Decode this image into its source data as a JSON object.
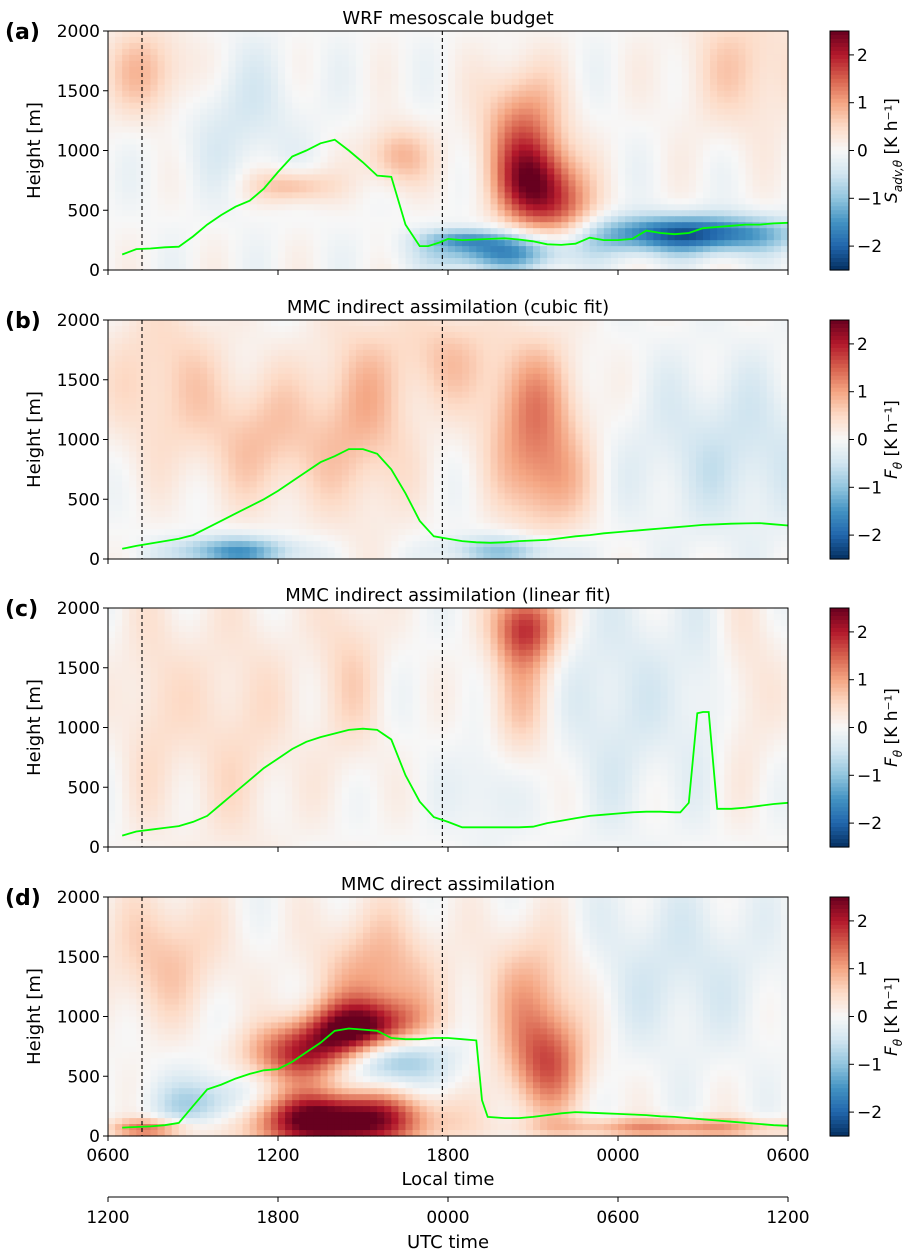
{
  "chart_data": [
    {
      "type": "heatmap",
      "panel_label": "(a)",
      "title": "WRF mesoscale budget",
      "ylabel": "Height [m]",
      "ylim": [
        0,
        2000
      ],
      "yticks": [
        "0",
        "500",
        "1000",
        "1500",
        "2000"
      ],
      "colorbar_label": "S_adv,θ [K h⁻¹]",
      "colorbar_main": "S",
      "colorbar_sub": "adv,θ",
      "colorbar_rest": " [K h⁻¹]",
      "colorbar_range": [
        -2.5,
        2.5
      ],
      "colorbar_ticks": [
        "−2",
        "−1",
        "0",
        "1",
        "2"
      ],
      "colormap": "RdBu_r",
      "line_color": "#00ff00",
      "series": [
        {
          "x": [
            0.5,
            1,
            1.5,
            2,
            2.5,
            3,
            3.5,
            4,
            4.5,
            5,
            5.5,
            6,
            6.5,
            7,
            7.5,
            8,
            8.5,
            9,
            9.5,
            10,
            10.5,
            11,
            11.3,
            11.7,
            12,
            12.5,
            13,
            13.5,
            14,
            14.5,
            15,
            15.5,
            16,
            16.5,
            17,
            17.5,
            18,
            18.5,
            19,
            19.5,
            20,
            20.5,
            21,
            21.5,
            22,
            22.5,
            23,
            23.5,
            24
          ],
          "y": [
            130,
            175,
            180,
            190,
            195,
            280,
            380,
            460,
            530,
            580,
            680,
            820,
            950,
            1000,
            1060,
            1090,
            1000,
            900,
            790,
            780,
            380,
            200,
            200,
            230,
            260,
            250,
            255,
            260,
            265,
            255,
            240,
            215,
            210,
            220,
            270,
            250,
            250,
            260,
            330,
            310,
            300,
            310,
            350,
            360,
            370,
            380,
            380,
            390,
            395
          ]
        }
      ],
      "dashed_lines_x": [
        1.2,
        11.8
      ],
      "blobs": [
        {
          "x": 15,
          "y": 700,
          "sx": 0.9,
          "sy": 260,
          "a": 2.0
        },
        {
          "x": 14.6,
          "y": 1200,
          "sx": 1.0,
          "sy": 350,
          "a": 1.2
        },
        {
          "x": 16.2,
          "y": 500,
          "sx": 0.8,
          "sy": 250,
          "a": 0.9
        },
        {
          "x": 20.5,
          "y": 300,
          "sx": 2.5,
          "sy": 110,
          "a": -2.2
        },
        {
          "x": 14.0,
          "y": 150,
          "sx": 1.8,
          "sy": 110,
          "a": -1.6
        },
        {
          "x": 12.5,
          "y": 260,
          "sx": 1.0,
          "sy": 60,
          "a": -0.9
        },
        {
          "x": 6.5,
          "y": 700,
          "sx": 1.0,
          "sy": 100,
          "a": 0.9
        },
        {
          "x": 10.2,
          "y": 950,
          "sx": 0.8,
          "sy": 180,
          "a": 0.9
        },
        {
          "x": 1.5,
          "y": 1650,
          "sx": 1.2,
          "sy": 280,
          "a": 0.8
        },
        {
          "x": 22.5,
          "y": 1700,
          "sx": 1.6,
          "sy": 400,
          "a": 0.6
        },
        {
          "x": 4.5,
          "y": 1300,
          "sx": 1.6,
          "sy": 400,
          "a": -0.4
        }
      ]
    },
    {
      "type": "heatmap",
      "panel_label": "(b)",
      "title": "MMC indirect assimilation (cubic fit)",
      "ylabel": "Height [m]",
      "ylim": [
        0,
        2000
      ],
      "yticks": [
        "0",
        "500",
        "1000",
        "1500",
        "2000"
      ],
      "colorbar_label": "F_θ [K h⁻¹]",
      "colorbar_main": "F",
      "colorbar_sub": "θ",
      "colorbar_rest": " [K h⁻¹]",
      "colorbar_range": [
        -2.5,
        2.5
      ],
      "colorbar_ticks": [
        "−2",
        "−1",
        "0",
        "1",
        "2"
      ],
      "colormap": "RdBu_r",
      "line_color": "#00ff00",
      "series": [
        {
          "x": [
            0.5,
            1,
            1.5,
            2,
            2.5,
            3,
            3.5,
            4,
            4.5,
            5,
            5.5,
            6,
            6.5,
            7,
            7.5,
            8,
            8.5,
            9,
            9.5,
            10,
            10.5,
            11,
            11.5,
            12,
            12.5,
            13,
            13.5,
            14,
            14.5,
            15,
            15.5,
            16,
            16.5,
            17,
            17.5,
            18,
            18.5,
            19,
            19.5,
            20,
            20.5,
            21,
            21.5,
            22,
            22.5,
            23,
            23.5,
            24
          ],
          "y": [
            85,
            110,
            130,
            150,
            170,
            200,
            260,
            320,
            380,
            440,
            500,
            570,
            650,
            730,
            810,
            860,
            920,
            920,
            880,
            750,
            550,
            320,
            190,
            170,
            150,
            140,
            135,
            140,
            150,
            155,
            160,
            175,
            190,
            200,
            215,
            225,
            235,
            245,
            255,
            265,
            275,
            285,
            290,
            295,
            298,
            300,
            290,
            280
          ]
        }
      ],
      "dashed_lines_x": [
        1.2,
        11.8
      ],
      "blobs": [
        {
          "x": 15,
          "y": 1200,
          "sx": 1.2,
          "sy": 450,
          "a": 1.2
        },
        {
          "x": 15.6,
          "y": 600,
          "sx": 1.0,
          "sy": 300,
          "a": 0.7
        },
        {
          "x": 4.5,
          "y": 60,
          "sx": 1.5,
          "sy": 90,
          "a": -1.5
        },
        {
          "x": 14.0,
          "y": 70,
          "sx": 1.5,
          "sy": 90,
          "a": -1.0
        },
        {
          "x": 9,
          "y": 1200,
          "sx": 1.3,
          "sy": 600,
          "a": 0.8
        },
        {
          "x": 5.5,
          "y": 1000,
          "sx": 1.5,
          "sy": 400,
          "a": 0.7
        },
        {
          "x": 2,
          "y": 1500,
          "sx": 1.5,
          "sy": 500,
          "a": 0.6
        },
        {
          "x": 22,
          "y": 900,
          "sx": 2.5,
          "sy": 500,
          "a": -0.5
        },
        {
          "x": 12,
          "y": 1700,
          "sx": 1.2,
          "sy": 300,
          "a": 0.6
        }
      ]
    },
    {
      "type": "heatmap",
      "panel_label": "(c)",
      "title": "MMC indirect assimilation (linear fit)",
      "ylabel": "Height [m]",
      "ylim": [
        0,
        2000
      ],
      "yticks": [
        "0",
        "500",
        "1000",
        "1500",
        "2000"
      ],
      "colorbar_label": "F_θ [K h⁻¹]",
      "colorbar_main": "F",
      "colorbar_sub": "θ",
      "colorbar_rest": " [K h⁻¹]",
      "colorbar_range": [
        -2.5,
        2.5
      ],
      "colorbar_ticks": [
        "−2",
        "−1",
        "0",
        "1",
        "2"
      ],
      "colormap": "RdBu_r",
      "line_color": "#00ff00",
      "series": [
        {
          "x": [
            0.5,
            1,
            1.5,
            2,
            2.5,
            3,
            3.5,
            4,
            4.5,
            5,
            5.5,
            6,
            6.5,
            7,
            7.5,
            8,
            8.5,
            9,
            9.5,
            10,
            10.5,
            11,
            11.5,
            12,
            12.5,
            13,
            13.5,
            14,
            14.5,
            15,
            15.5,
            16,
            16.5,
            17,
            17.5,
            18,
            18.5,
            19,
            19.5,
            20,
            20.2,
            20.5,
            20.8,
            21,
            21.2,
            21.5,
            22,
            22.5,
            23,
            23.5,
            24
          ],
          "y": [
            95,
            130,
            145,
            160,
            175,
            210,
            260,
            360,
            460,
            560,
            660,
            740,
            820,
            880,
            920,
            950,
            980,
            990,
            980,
            900,
            600,
            380,
            250,
            210,
            165,
            165,
            165,
            165,
            165,
            170,
            200,
            220,
            240,
            260,
            270,
            280,
            290,
            295,
            295,
            290,
            290,
            370,
            1120,
            1130,
            1130,
            320,
            320,
            330,
            345,
            360,
            370
          ]
        }
      ],
      "dashed_lines_x": [
        1.2,
        11.8
      ],
      "blobs": [
        {
          "x": 14.8,
          "y": 1850,
          "sx": 0.8,
          "sy": 220,
          "a": 1.6
        },
        {
          "x": 14.5,
          "y": 1300,
          "sx": 0.8,
          "sy": 500,
          "a": 0.7
        },
        {
          "x": 8.5,
          "y": 1500,
          "sx": 0.9,
          "sy": 600,
          "a": 0.5
        },
        {
          "x": 4.5,
          "y": 1000,
          "sx": 1.5,
          "sy": 800,
          "a": 0.45
        },
        {
          "x": 1.5,
          "y": 1200,
          "sx": 0.8,
          "sy": 700,
          "a": 0.4
        },
        {
          "x": 18,
          "y": 1200,
          "sx": 1.5,
          "sy": 700,
          "a": -0.4
        },
        {
          "x": 13.5,
          "y": 500,
          "sx": 0.8,
          "sy": 300,
          "a": -0.4
        },
        {
          "x": 22.5,
          "y": 1400,
          "sx": 0.8,
          "sy": 600,
          "a": 0.35
        },
        {
          "x": 21,
          "y": 1400,
          "sx": 0.7,
          "sy": 600,
          "a": -0.3
        }
      ]
    },
    {
      "type": "heatmap",
      "panel_label": "(d)",
      "title": "MMC direct assimilation",
      "ylabel": "Height [m]",
      "ylim": [
        0,
        2000
      ],
      "yticks": [
        "0",
        "500",
        "1000",
        "1500",
        "2000"
      ],
      "xlabel": "Local time",
      "xticks": [
        "0600",
        "1200",
        "1800",
        "0000",
        "0600"
      ],
      "secondary_xlabel": "UTC time",
      "secondary_xticks": [
        "1200",
        "1800",
        "0000",
        "0600",
        "1200"
      ],
      "colorbar_label": "F_θ [K h⁻¹]",
      "colorbar_main": "F",
      "colorbar_sub": "θ",
      "colorbar_rest": " [K h⁻¹]",
      "colorbar_range": [
        -2.5,
        2.5
      ],
      "colorbar_ticks": [
        "−2",
        "−1",
        "0",
        "1",
        "2"
      ],
      "colormap": "RdBu_r",
      "line_color": "#00ff00",
      "series": [
        {
          "x": [
            0.5,
            1,
            1.5,
            2,
            2.5,
            3,
            3.5,
            4,
            4.5,
            5,
            5.5,
            6,
            6.5,
            7,
            7.5,
            8,
            8.5,
            9,
            9.5,
            10,
            10.5,
            11,
            11.5,
            12,
            12.5,
            13,
            13.2,
            13.4,
            14,
            14.5,
            15,
            15.5,
            16,
            16.5,
            17,
            17.5,
            18,
            18.5,
            19,
            19.5,
            20,
            20.5,
            21,
            21.5,
            22,
            22.5,
            23,
            23.5,
            24
          ],
          "y": [
            70,
            75,
            80,
            90,
            110,
            250,
            390,
            430,
            480,
            520,
            550,
            560,
            620,
            700,
            780,
            880,
            900,
            890,
            880,
            820,
            810,
            810,
            820,
            820,
            810,
            800,
            300,
            160,
            150,
            150,
            160,
            175,
            190,
            200,
            195,
            190,
            185,
            180,
            175,
            165,
            160,
            150,
            140,
            130,
            120,
            110,
            100,
            90,
            85
          ]
        }
      ],
      "dashed_lines_x": [
        1.2,
        11.8
      ],
      "blobs": [
        {
          "x": 7,
          "y": 650,
          "sx": 1.6,
          "sy": 200,
          "a": 3.5
        },
        {
          "x": 9,
          "y": 850,
          "sx": 1.4,
          "sy": 180,
          "a": 3.0
        },
        {
          "x": 8,
          "y": 150,
          "sx": 2.2,
          "sy": 180,
          "a": 3.5
        },
        {
          "x": 7.5,
          "y": 550,
          "sx": 2.2,
          "sy": 280,
          "a": -2.0
        },
        {
          "x": 9.5,
          "y": 700,
          "sx": 1.4,
          "sy": 150,
          "a": -2.0
        },
        {
          "x": 9.5,
          "y": 1300,
          "sx": 1.5,
          "sy": 400,
          "a": 1.0
        },
        {
          "x": 15.5,
          "y": 600,
          "sx": 1.0,
          "sy": 300,
          "a": 1.4
        },
        {
          "x": 15,
          "y": 1200,
          "sx": 1.2,
          "sy": 400,
          "a": 0.9
        },
        {
          "x": 3.5,
          "y": 250,
          "sx": 1.2,
          "sy": 150,
          "a": -1.0
        },
        {
          "x": 20,
          "y": 70,
          "sx": 3.0,
          "sy": 60,
          "a": 1.2
        },
        {
          "x": 2,
          "y": 1500,
          "sx": 1.5,
          "sy": 400,
          "a": 0.7
        },
        {
          "x": 20,
          "y": 1400,
          "sx": 2.5,
          "sy": 500,
          "a": -0.4
        },
        {
          "x": 1.5,
          "y": 60,
          "sx": 1.0,
          "sy": 60,
          "a": 1.4
        }
      ]
    }
  ]
}
